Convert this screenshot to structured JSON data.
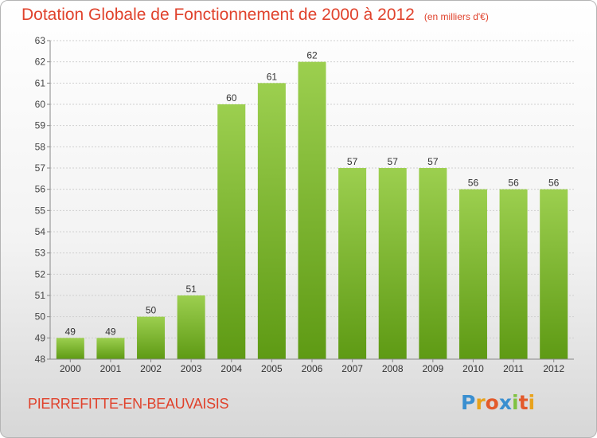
{
  "header": {
    "title": "Dotation Globale de Fonctionnement de 2000 à 2012",
    "unit": "(en milliers d'€)"
  },
  "footer": {
    "commune": "PIERREFITTE-EN-BEAUVAISIS",
    "logo_letters": [
      "P",
      "r",
      "o",
      "x",
      "i",
      "t",
      "i"
    ],
    "logo_colors": [
      "#3a8fd0",
      "#e8a21b",
      "#e35a2b",
      "#3a8fd0",
      "#7fc241",
      "#e35a2b",
      "#e8a21b"
    ]
  },
  "colors": {
    "accent": "#e0422c",
    "bar_top": "#9ccf4f",
    "bar_bottom": "#5e9a14"
  },
  "chart_data": {
    "type": "bar",
    "categories": [
      "2000",
      "2001",
      "2002",
      "2003",
      "2004",
      "2005",
      "2006",
      "2007",
      "2008",
      "2009",
      "2010",
      "2011",
      "2012"
    ],
    "values": [
      49,
      49,
      50,
      51,
      60,
      61,
      62,
      57,
      57,
      57,
      56,
      56,
      56
    ],
    "ylim": [
      48,
      63
    ],
    "yticks": [
      48,
      49,
      50,
      51,
      52,
      53,
      54,
      55,
      56,
      57,
      58,
      59,
      60,
      61,
      62,
      63
    ],
    "grid": true,
    "data_labels": true
  }
}
